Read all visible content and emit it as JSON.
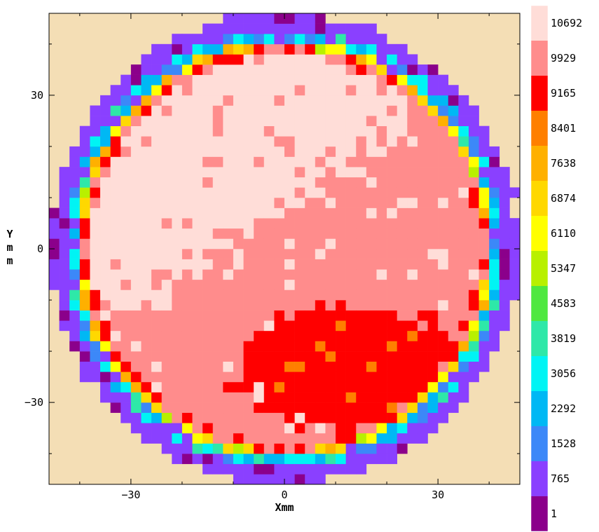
{
  "chart_data": {
    "type": "heatmap",
    "title": "",
    "xlabel": "Xmm",
    "ylabel": "Ymm",
    "xlim": [
      -46,
      46
    ],
    "ylim": [
      -46,
      46
    ],
    "xticks": [
      -30,
      0,
      30
    ],
    "yticks": [
      30,
      0,
      -30
    ],
    "xtick_labels": [
      "−30",
      "0",
      "30"
    ],
    "ytick_labels": [
      "30",
      "0",
      "−30"
    ],
    "background_color": "#F4DEB5",
    "grid": false,
    "legend_position": "right",
    "colorbar": {
      "levels": [
        10692,
        9929,
        9165,
        8401,
        7638,
        6874,
        6110,
        5347,
        4583,
        3819,
        3056,
        2292,
        1528,
        765,
        1
      ],
      "labels": [
        "10692",
        "9929",
        "9165",
        "8401",
        "7638",
        "6874",
        "6110",
        "5347",
        "4583",
        "3819",
        "3056",
        "2292",
        "1528",
        "765",
        "1"
      ],
      "colors": [
        "#FFDDD8",
        "#FF8C8C",
        "#FF0000",
        "#FF7F00",
        "#FFB000",
        "#FFD800",
        "#FFFF00",
        "#B8F000",
        "#4FE840",
        "#2EE8A8",
        "#00F4F4",
        "#00B8F4",
        "#3C88F8",
        "#8A40FF",
        "#8B008B"
      ]
    },
    "regions": {
      "wafer_radius_mm": 44,
      "center_plateau": {
        "value": 10692,
        "description_band": "upper-left high region"
      },
      "body": {
        "value": 9929
      },
      "low_spot": {
        "value": 9165,
        "center_mm": [
          13,
          -23
        ]
      },
      "edge_ring_values": [
        6874,
        5347,
        3056,
        765,
        1
      ]
    }
  }
}
